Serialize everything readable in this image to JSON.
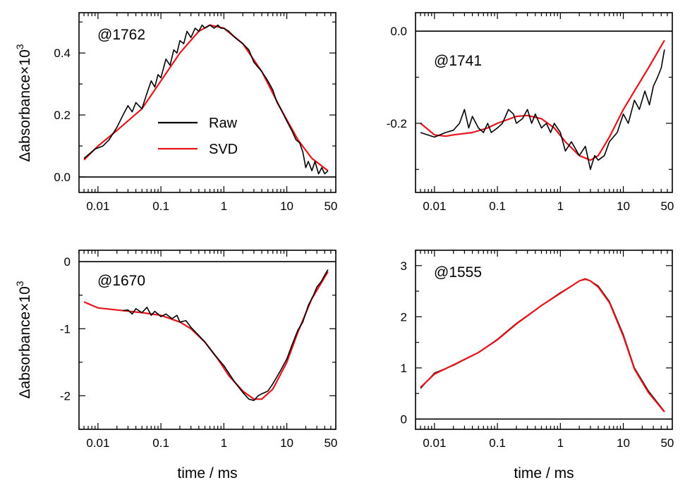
{
  "figure": {
    "ylabel_prefix": "Δabsorbance×10",
    "ylabel_exp": "3",
    "xlabel": "time / ms",
    "colors": {
      "raw": "#000000",
      "svd": "#e8141b",
      "axes": "#000000"
    }
  },
  "chart_data": [
    {
      "type": "line",
      "annotation": "@1762",
      "xscale": "log",
      "xlim": [
        0.005,
        60
      ],
      "ylim": [
        -0.05,
        0.53
      ],
      "xticks": [
        0.01,
        0.1,
        1,
        10,
        50
      ],
      "xtick_labels": [
        "0.01",
        "0.1",
        "1",
        "10",
        "50"
      ],
      "yticks": [
        0.0,
        0.2,
        0.4
      ],
      "ytick_labels": [
        "0.0",
        "0.2",
        "0.4"
      ],
      "ylabel": "Δabsorbance×10³",
      "xlabel": "",
      "zero_line": true,
      "legend": {
        "position": "center-left",
        "entries": [
          "Raw",
          "SVD"
        ]
      },
      "series": [
        {
          "name": "SVD",
          "color": "#e8141b",
          "x": [
            0.006,
            0.01,
            0.02,
            0.05,
            0.1,
            0.2,
            0.4,
            0.6,
            1,
            2,
            4,
            8,
            15,
            25,
            45
          ],
          "y": [
            0.055,
            0.1,
            0.15,
            0.22,
            0.31,
            0.4,
            0.47,
            0.49,
            0.48,
            0.43,
            0.34,
            0.22,
            0.12,
            0.06,
            0.02
          ]
        },
        {
          "name": "Raw",
          "color": "#000000",
          "x": [
            0.006,
            0.009,
            0.012,
            0.015,
            0.02,
            0.025,
            0.03,
            0.035,
            0.04,
            0.05,
            0.06,
            0.07,
            0.08,
            0.09,
            0.1,
            0.12,
            0.14,
            0.16,
            0.18,
            0.2,
            0.23,
            0.26,
            0.3,
            0.35,
            0.4,
            0.45,
            0.5,
            0.6,
            0.7,
            0.8,
            0.9,
            1,
            1.2,
            1.5,
            2,
            2.5,
            3,
            4,
            5,
            6,
            7,
            8,
            10,
            12,
            14,
            16,
            18,
            20,
            22,
            25,
            28,
            32,
            36,
            40,
            45
          ],
          "y": [
            0.06,
            0.09,
            0.1,
            0.12,
            0.16,
            0.2,
            0.23,
            0.21,
            0.24,
            0.22,
            0.27,
            0.31,
            0.29,
            0.33,
            0.32,
            0.38,
            0.36,
            0.41,
            0.4,
            0.44,
            0.43,
            0.47,
            0.45,
            0.48,
            0.47,
            0.49,
            0.48,
            0.49,
            0.48,
            0.49,
            0.48,
            0.48,
            0.47,
            0.45,
            0.43,
            0.41,
            0.37,
            0.34,
            0.31,
            0.28,
            0.24,
            0.22,
            0.18,
            0.15,
            0.12,
            0.11,
            0.08,
            0.03,
            0.05,
            0.02,
            0.05,
            0.01,
            0.03,
            0.01,
            0.02
          ]
        }
      ]
    },
    {
      "type": "line",
      "annotation": "@1741",
      "xscale": "log",
      "xlim": [
        0.005,
        60
      ],
      "ylim": [
        -0.35,
        0.04
      ],
      "xticks": [
        0.01,
        0.1,
        1,
        10,
        50
      ],
      "xtick_labels": [
        "0.01",
        "0.1",
        "1",
        "10",
        "50"
      ],
      "yticks": [
        0.0,
        -0.2
      ],
      "ytick_labels": [
        "0.0",
        "-0.2"
      ],
      "ylabel": "",
      "xlabel": "",
      "zero_line": true,
      "legend": null,
      "series": [
        {
          "name": "SVD",
          "color": "#e8141b",
          "x": [
            0.006,
            0.01,
            0.015,
            0.02,
            0.04,
            0.07,
            0.1,
            0.2,
            0.3,
            0.5,
            0.8,
            1.2,
            2,
            3,
            4,
            6,
            10,
            15,
            25,
            45
          ],
          "y": [
            -0.2,
            -0.225,
            -0.228,
            -0.225,
            -0.22,
            -0.21,
            -0.2,
            -0.185,
            -0.183,
            -0.19,
            -0.21,
            -0.24,
            -0.27,
            -0.28,
            -0.27,
            -0.23,
            -0.17,
            -0.13,
            -0.08,
            -0.02
          ]
        },
        {
          "name": "Raw",
          "color": "#000000",
          "x": [
            0.006,
            0.01,
            0.015,
            0.02,
            0.025,
            0.03,
            0.035,
            0.04,
            0.05,
            0.06,
            0.07,
            0.08,
            0.1,
            0.12,
            0.15,
            0.18,
            0.2,
            0.25,
            0.3,
            0.35,
            0.4,
            0.5,
            0.6,
            0.7,
            0.8,
            1,
            1.2,
            1.5,
            2,
            2.5,
            3,
            3.5,
            4,
            5,
            6,
            8,
            10,
            12,
            15,
            18,
            22,
            26,
            30,
            35,
            40,
            45
          ],
          "y": [
            -0.22,
            -0.23,
            -0.22,
            -0.215,
            -0.2,
            -0.17,
            -0.21,
            -0.185,
            -0.21,
            -0.22,
            -0.2,
            -0.22,
            -0.21,
            -0.2,
            -0.17,
            -0.18,
            -0.2,
            -0.19,
            -0.17,
            -0.2,
            -0.18,
            -0.21,
            -0.2,
            -0.22,
            -0.2,
            -0.22,
            -0.26,
            -0.24,
            -0.27,
            -0.25,
            -0.3,
            -0.27,
            -0.28,
            -0.27,
            -0.24,
            -0.22,
            -0.18,
            -0.2,
            -0.15,
            -0.17,
            -0.13,
            -0.16,
            -0.12,
            -0.1,
            -0.08,
            -0.04
          ]
        }
      ]
    },
    {
      "type": "line",
      "annotation": "@1670",
      "xscale": "log",
      "xlim": [
        0.005,
        60
      ],
      "ylim": [
        -2.5,
        0.17
      ],
      "xticks": [
        0.01,
        0.1,
        1,
        10,
        50
      ],
      "xtick_labels": [
        "0.01",
        "0.1",
        "1",
        "10",
        "50"
      ],
      "yticks": [
        0,
        -1,
        -2
      ],
      "ytick_labels": [
        "0",
        "-1",
        "-2"
      ],
      "ylabel": "Δabsorbance×10³",
      "xlabel": "time / ms",
      "zero_line": true,
      "legend": null,
      "series": [
        {
          "name": "SVD",
          "color": "#e8141b",
          "x": [
            0.006,
            0.01,
            0.02,
            0.05,
            0.1,
            0.2,
            0.3,
            0.5,
            0.8,
            1.2,
            2,
            3,
            4,
            6,
            10,
            15,
            25,
            45
          ],
          "y": [
            -0.6,
            -0.69,
            -0.72,
            -0.76,
            -0.8,
            -0.9,
            -1.0,
            -1.2,
            -1.45,
            -1.7,
            -1.93,
            -2.05,
            -2.05,
            -1.9,
            -1.5,
            -1.05,
            -0.55,
            -0.15
          ]
        },
        {
          "name": "Raw",
          "color": "#000000",
          "x": [
            0.025,
            0.03,
            0.035,
            0.04,
            0.05,
            0.06,
            0.07,
            0.08,
            0.1,
            0.12,
            0.15,
            0.18,
            0.2,
            0.25,
            0.3,
            0.4,
            0.5,
            0.7,
            1,
            1.5,
            2,
            2.5,
            3,
            3.5,
            4,
            5,
            6,
            8,
            10,
            12,
            15,
            18,
            22,
            26,
            30,
            35,
            40,
            45
          ],
          "y": [
            -0.73,
            -0.72,
            -0.78,
            -0.7,
            -0.76,
            -0.68,
            -0.8,
            -0.74,
            -0.82,
            -0.78,
            -0.85,
            -0.8,
            -0.9,
            -0.88,
            -0.98,
            -1.1,
            -1.2,
            -1.38,
            -1.55,
            -1.8,
            -1.95,
            -2.05,
            -2.07,
            -2.0,
            -1.97,
            -1.93,
            -1.82,
            -1.62,
            -1.45,
            -1.25,
            -1.02,
            -0.9,
            -0.65,
            -0.52,
            -0.38,
            -0.3,
            -0.2,
            -0.12
          ]
        }
      ]
    },
    {
      "type": "line",
      "annotation": "@1555",
      "xscale": "log",
      "xlim": [
        0.005,
        60
      ],
      "ylim": [
        -0.2,
        3.3
      ],
      "xticks": [
        0.01,
        0.1,
        1,
        10,
        50
      ],
      "xtick_labels": [
        "0.01",
        "0.1",
        "1",
        "10",
        "50"
      ],
      "yticks": [
        0,
        1,
        2,
        3
      ],
      "ytick_labels": [
        "0",
        "1",
        "2",
        "3"
      ],
      "ylabel": "",
      "xlabel": "time / ms",
      "zero_line": true,
      "legend": null,
      "series": [
        {
          "name": "Raw",
          "color": "#000000",
          "x": [
            0.006,
            0.01,
            0.02,
            0.05,
            0.1,
            0.2,
            0.5,
            1,
            1.5,
            2,
            2.5,
            3,
            4,
            6,
            10,
            15,
            25,
            45
          ],
          "y": [
            0.6,
            0.9,
            1.05,
            1.3,
            1.56,
            1.87,
            2.22,
            2.47,
            2.6,
            2.7,
            2.73,
            2.7,
            2.6,
            2.3,
            1.65,
            1.0,
            0.55,
            0.15
          ]
        },
        {
          "name": "SVD",
          "color": "#e8141b",
          "x": [
            0.006,
            0.01,
            0.02,
            0.05,
            0.1,
            0.2,
            0.5,
            1,
            1.5,
            2,
            2.5,
            3,
            4,
            6,
            10,
            15,
            25,
            45
          ],
          "y": [
            0.62,
            0.88,
            1.06,
            1.3,
            1.55,
            1.86,
            2.22,
            2.46,
            2.6,
            2.7,
            2.74,
            2.7,
            2.58,
            2.28,
            1.62,
            0.98,
            0.52,
            0.14
          ]
        }
      ]
    }
  ]
}
